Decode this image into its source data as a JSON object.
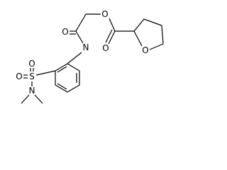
{
  "atoms": [
    {
      "label": "O"
    },
    {
      "label": "N"
    },
    {
      "label": "O"
    },
    {
      "label": "O"
    },
    {
      "label": "O"
    },
    {
      "label": "S"
    },
    {
      "label": "O"
    },
    {
      "label": "O"
    },
    {
      "label": "N"
    }
  ]
}
